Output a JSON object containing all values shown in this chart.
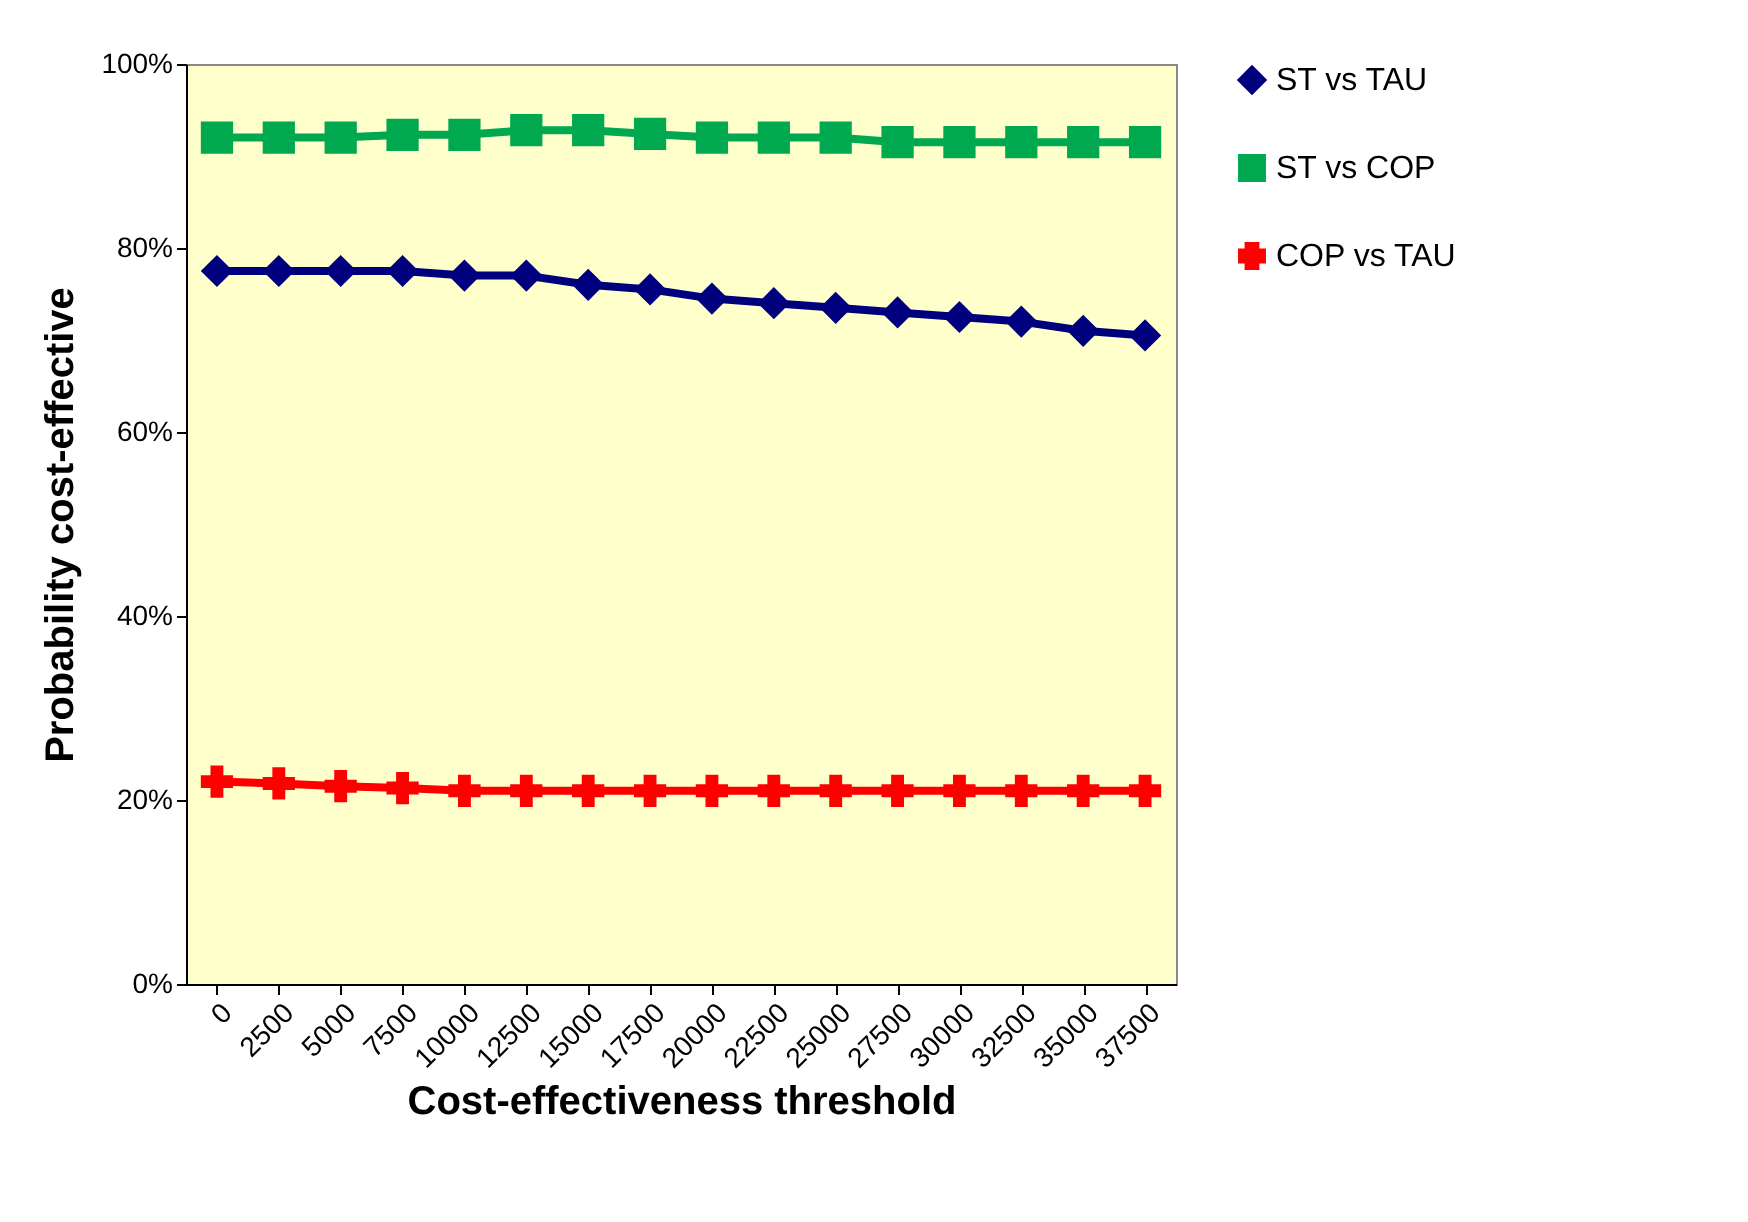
{
  "chart_data": {
    "type": "line",
    "xlabel": "Cost-effectiveness threshold",
    "ylabel": "Probability cost-effective",
    "categories": [
      "0",
      "2500",
      "5000",
      "7500",
      "10000",
      "12500",
      "15000",
      "17500",
      "20000",
      "22500",
      "25000",
      "27500",
      "30000",
      "32500",
      "35000",
      "37500"
    ],
    "series": [
      {
        "name": "ST vs TAU",
        "color": "#00007f",
        "marker": "diamond",
        "values": [
          77.5,
          77.5,
          77.5,
          77.5,
          77,
          77,
          76,
          75.5,
          74.5,
          74,
          73.5,
          73,
          72.5,
          72,
          71,
          70.5
        ]
      },
      {
        "name": "ST vs COP",
        "color": "#00a84f",
        "marker": "square",
        "values": [
          92,
          92,
          92,
          92.3,
          92.3,
          92.8,
          92.8,
          92.4,
          92,
          92,
          92,
          91.5,
          91.5,
          91.5,
          91.5,
          91.5
        ]
      },
      {
        "name": "COP vs TAU",
        "color": "#ff0000",
        "marker": "cross",
        "values": [
          22,
          21.8,
          21.5,
          21.3,
          21,
          21,
          21,
          21,
          21,
          21,
          21,
          21,
          21,
          21,
          21,
          21
        ]
      }
    ],
    "ylim": [
      0,
      100
    ],
    "yticks": [
      {
        "value": 0,
        "label": "0%"
      },
      {
        "value": 20,
        "label": "20%"
      },
      {
        "value": 40,
        "label": "40%"
      },
      {
        "value": 60,
        "label": "60%"
      },
      {
        "value": 80,
        "label": "80%"
      },
      {
        "value": 100,
        "label": "100%"
      }
    ],
    "grid": false,
    "legend": "right",
    "line_style": "solid"
  }
}
